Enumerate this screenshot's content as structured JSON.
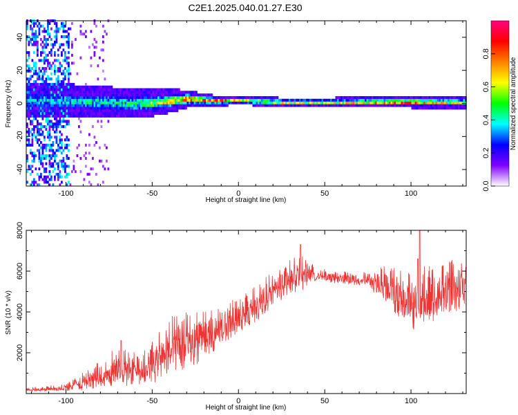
{
  "title": "C2E1.2025.040.01.27.E30",
  "colors": {
    "snr_line": "#ee3333",
    "frame": "#000000",
    "background": "#ffffff"
  },
  "chart_data": [
    {
      "type": "heatmap",
      "xlabel": "Height of straight line (km)",
      "ylabel": "Frequency (Hz)",
      "xlim": [
        -123,
        132
      ],
      "ylim": [
        -50,
        50
      ],
      "xticks": [
        -100,
        -50,
        0,
        50,
        100
      ],
      "yticks": [
        -40,
        -20,
        0,
        20,
        40
      ],
      "ytick_labels": [
        "-40",
        "-20",
        "0",
        "20",
        "40"
      ],
      "xtick_labels": [
        "-100",
        "-50",
        "0",
        "50",
        "100"
      ],
      "colorbar": {
        "label": "Normalized spectral amplitude",
        "range": [
          0,
          1
        ],
        "ticks": [
          "0.0",
          "0.2",
          "0.4",
          "0.6",
          "0.8"
        ],
        "tick_values": [
          0.0,
          0.2,
          0.4,
          0.6,
          0.8
        ],
        "colormap": [
          "#ffffff",
          "#8000ff",
          "#0000ff",
          "#00ffff",
          "#00ff00",
          "#ffff00",
          "#ff8000",
          "#ff0000",
          "#ff0080"
        ]
      },
      "band": {
        "description_free": true,
        "center_hz": [
          [
            -110,
            1
          ],
          [
            -80,
            0
          ],
          [
            -60,
            -1
          ],
          [
            -45,
            0
          ],
          [
            -30,
            2
          ],
          [
            -15,
            1
          ],
          [
            0,
            1
          ],
          [
            25,
            0
          ],
          [
            50,
            0
          ],
          [
            75,
            0
          ],
          [
            100,
            0
          ],
          [
            132,
            0
          ]
        ],
        "half_width_hz": [
          [
            -110,
            6
          ],
          [
            -60,
            5
          ],
          [
            -40,
            4
          ],
          [
            -20,
            2
          ],
          [
            0,
            1.5
          ],
          [
            50,
            1.5
          ],
          [
            100,
            2
          ],
          [
            132,
            2
          ]
        ],
        "peak_amplitude": [
          [
            -110,
            0.4
          ],
          [
            -60,
            0.5
          ],
          [
            -30,
            0.85
          ],
          [
            -15,
            0.95
          ],
          [
            0,
            0.7
          ],
          [
            25,
            0.75
          ],
          [
            50,
            0.7
          ],
          [
            90,
            0.9
          ],
          [
            103,
            0.95
          ],
          [
            132,
            0.6
          ]
        ]
      },
      "scatter_region": {
        "x_range": [
          -123,
          -98
        ],
        "sparse_x_range": [
          -98,
          -75
        ],
        "amplitude": [
          0.1,
          0.4
        ]
      }
    },
    {
      "type": "line",
      "xlabel": "Height of straight line (km)",
      "ylabel": "SNR (10 * v/v)",
      "xlim": [
        -123,
        132
      ],
      "ylim": [
        0,
        8000
      ],
      "xticks": [
        -100,
        -50,
        0,
        50,
        100
      ],
      "xtick_labels": [
        "-100",
        "-50",
        "0",
        "50",
        "100"
      ],
      "yticks": [
        2000,
        4000,
        6000,
        8000
      ],
      "ytick_labels": [
        "2000",
        "4000",
        "6000",
        "8000"
      ],
      "series": [
        {
          "x": [
            -123,
            -110,
            -100,
            -95,
            -90,
            -85,
            -80,
            -75,
            -70,
            -65,
            -60,
            -55,
            -50,
            -45,
            -40,
            -35,
            -30,
            -25,
            -20,
            -15,
            -10,
            -5,
            0,
            5,
            10,
            15,
            20,
            25,
            30,
            35,
            40,
            45,
            50,
            55,
            60,
            65,
            70,
            75,
            80,
            85,
            90,
            95,
            100,
            105,
            110,
            115,
            120,
            125,
            132
          ],
          "y": [
            200,
            250,
            300,
            450,
            600,
            800,
            900,
            1100,
            1500,
            1300,
            1200,
            1300,
            1600,
            2100,
            2300,
            2500,
            2600,
            2700,
            2900,
            3000,
            3300,
            3600,
            3800,
            4100,
            4400,
            4800,
            5100,
            5400,
            5700,
            5900,
            6000,
            5800,
            5800,
            5700,
            5700,
            5650,
            5600,
            5600,
            5500,
            5400,
            5200,
            4900,
            4600,
            4700,
            4900,
            5000,
            5200,
            5300,
            5400
          ],
          "noise": [
            100,
            150,
            200,
            300,
            450,
            600,
            700,
            800,
            1000,
            900,
            800,
            900,
            1100,
            1300,
            1400,
            1500,
            1400,
            1300,
            1200,
            1100,
            1000,
            1000,
            900,
            900,
            900,
            900,
            900,
            900,
            900,
            900,
            700,
            300,
            300,
            300,
            300,
            300,
            300,
            400,
            600,
            900,
            1200,
            1400,
            1500,
            1500,
            1500,
            1400,
            1300,
            1300,
            1200
          ],
          "spikes": [
            [
              -68,
              2600
            ],
            [
              -30,
              2800
            ],
            [
              36,
              7300
            ],
            [
              105,
              8000
            ],
            [
              104,
              6600
            ]
          ]
        }
      ]
    }
  ]
}
